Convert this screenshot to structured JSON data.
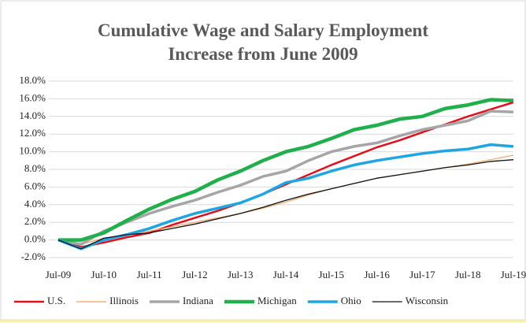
{
  "chart_data": {
    "type": "line",
    "title": "Cumulative Wage and Salary Employment Increase from June 2009",
    "categories": [
      "Jul-09",
      null,
      "Jul-10",
      null,
      "Jul-11",
      null,
      "Jul-12",
      null,
      "Jul-13",
      null,
      "Jul-14",
      null,
      "Jul-15",
      null,
      "Jul-16",
      null,
      "Jul-17",
      null,
      "Jul-18",
      null,
      "Jul-19"
    ],
    "ylim": [
      -2,
      18
    ],
    "yticks": [
      {
        "value": -2,
        "label": "-2.0%"
      },
      {
        "value": 0,
        "label": "0.0%"
      },
      {
        "value": 2,
        "label": "2.0%"
      },
      {
        "value": 4,
        "label": "4.0%"
      },
      {
        "value": 6,
        "label": "6.0%"
      },
      {
        "value": 8,
        "label": "8.0%"
      },
      {
        "value": 10,
        "label": "10.0%"
      },
      {
        "value": 12,
        "label": "12.0%"
      },
      {
        "value": 14,
        "label": "14.0%"
      },
      {
        "value": 16,
        "label": "16.0%"
      },
      {
        "value": 18,
        "label": "18.0%"
      }
    ],
    "grid": true,
    "legend": "bottom",
    "series": [
      {
        "name": "U.S.",
        "color": "#e3101b",
        "width": 2.5,
        "values": [
          0,
          -0.8,
          -0.3,
          0.3,
          0.8,
          1.7,
          2.5,
          3.3,
          4.2,
          5.2,
          6.3,
          7.4,
          8.5,
          9.5,
          10.5,
          11.3,
          12.2,
          13.1,
          14.0,
          14.8,
          15.6
        ]
      },
      {
        "name": "Illinois",
        "color": "#f0a35e",
        "width": 1.2,
        "values": [
          0,
          -0.5,
          0.2,
          0.6,
          1.0,
          1.5,
          2.0,
          2.5,
          3.0,
          3.6,
          4.3,
          5.1,
          5.8,
          6.4,
          7.0,
          7.4,
          7.8,
          8.2,
          8.6,
          9.1,
          9.6
        ]
      },
      {
        "name": "Indiana",
        "color": "#a6a6a6",
        "width": 3.5,
        "values": [
          0,
          -0.5,
          1.0,
          2.0,
          3.0,
          3.8,
          4.5,
          5.4,
          6.2,
          7.2,
          7.8,
          9.0,
          10.0,
          10.6,
          11.0,
          11.8,
          12.5,
          13.0,
          13.5,
          14.6,
          14.5
        ]
      },
      {
        "name": "Michigan",
        "color": "#1fb04b",
        "width": 4.5,
        "values": [
          0,
          0,
          0.8,
          2.2,
          3.5,
          4.6,
          5.5,
          6.8,
          7.8,
          9.0,
          10.0,
          10.6,
          11.5,
          12.5,
          13.0,
          13.7,
          14.0,
          14.9,
          15.3,
          15.9,
          15.8
        ]
      },
      {
        "name": "Ohio",
        "color": "#1ea6e2",
        "width": 3.5,
        "values": [
          0,
          -1.0,
          0.0,
          0.6,
          1.3,
          2.2,
          3.0,
          3.6,
          4.2,
          5.2,
          6.5,
          7.0,
          7.8,
          8.5,
          9.0,
          9.4,
          9.8,
          10.1,
          10.3,
          10.8,
          10.6
        ]
      },
      {
        "name": "Wisconsin",
        "color": "#111111",
        "width": 1.3,
        "values": [
          0,
          -1.0,
          0.2,
          0.6,
          0.8,
          1.3,
          1.8,
          2.4,
          3.0,
          3.7,
          4.5,
          5.2,
          5.8,
          6.4,
          7.0,
          7.4,
          7.8,
          8.2,
          8.5,
          8.9,
          9.1
        ]
      }
    ]
  }
}
